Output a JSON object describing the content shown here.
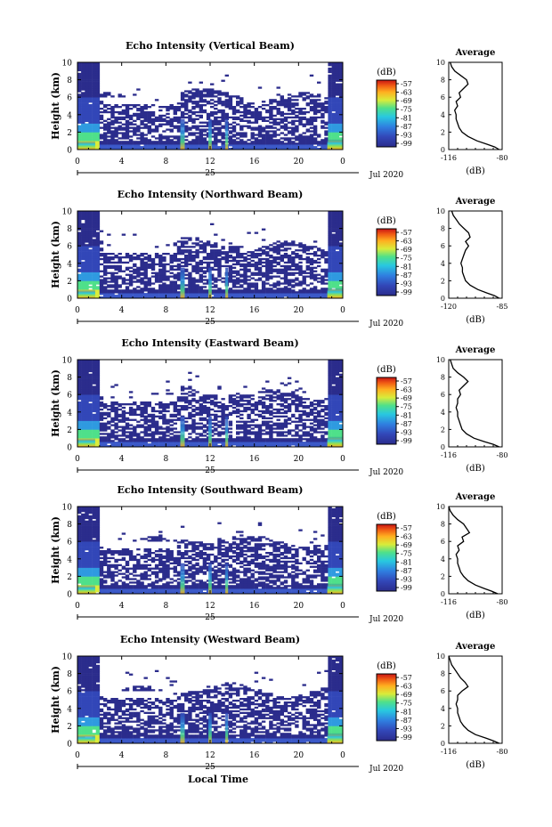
{
  "figure": {
    "xlabel_bottom": "Local Time",
    "colorbar_unit": "(dB)",
    "colorbar_ticks": [
      "-57",
      "-63",
      "-69",
      "-75",
      "-81",
      "-87",
      "-93",
      "-99"
    ],
    "avg_title": "Average",
    "avg_xlabel": "(dB)",
    "date_label": "Jul 2020",
    "day_label": "25",
    "ylabel": "Height (km)",
    "colors": {
      "low": "#2b2c8c",
      "high": "#c81414",
      "line": "#000000"
    }
  },
  "chart_data": [
    {
      "type": "heatmap",
      "title": "Echo Intensity (Vertical Beam)",
      "ylabel": "Height (km)",
      "x_ticks": [
        "0",
        "4",
        "8",
        "12",
        "16",
        "20",
        "0"
      ],
      "y_ticks": [
        "0",
        "2",
        "4",
        "6",
        "8",
        "10"
      ],
      "xlim": [
        0,
        24
      ],
      "ylim": [
        0,
        10
      ],
      "zlim": [
        -99,
        -57
      ],
      "avg_profile": {
        "xticks": [
          "-116",
          "-80"
        ],
        "xlim": [
          -116,
          -80
        ],
        "height": [
          0,
          0.3,
          0.6,
          1,
          1.5,
          2,
          2.5,
          3,
          3.5,
          4,
          4.5,
          5,
          5.5,
          6,
          6.5,
          7,
          7.5,
          8,
          8.5,
          9,
          9.5,
          10
        ],
        "value": [
          -82,
          -85,
          -90,
          -97,
          -103,
          -107,
          -109,
          -110,
          -111,
          -111,
          -112,
          -110,
          -111,
          -108,
          -109,
          -106,
          -103,
          -104,
          -108,
          -112,
          -114,
          -115
        ]
      }
    },
    {
      "type": "heatmap",
      "title": "Echo Intensity (Northward Beam)",
      "ylabel": "Height (km)",
      "x_ticks": [
        "0",
        "4",
        "8",
        "12",
        "16",
        "20",
        "0"
      ],
      "y_ticks": [
        "0",
        "2",
        "4",
        "6",
        "8",
        "10"
      ],
      "xlim": [
        0,
        24
      ],
      "ylim": [
        0,
        10
      ],
      "zlim": [
        -99,
        -57
      ],
      "avg_profile": {
        "xticks": [
          "-120",
          "-85"
        ],
        "xlim": [
          -120,
          -85
        ],
        "height": [
          0,
          0.3,
          0.6,
          1,
          1.5,
          2,
          2.5,
          3,
          3.5,
          4,
          4.5,
          5,
          5.5,
          6,
          6.5,
          7,
          7.5,
          8,
          8.5,
          9,
          9.5,
          10
        ],
        "value": [
          -87,
          -90,
          -95,
          -101,
          -106,
          -109,
          -110,
          -111,
          -111,
          -112,
          -111,
          -110,
          -109,
          -107,
          -109,
          -106,
          -107,
          -110,
          -113,
          -115,
          -117,
          -118
        ]
      }
    },
    {
      "type": "heatmap",
      "title": "Echo Intensity (Eastward Beam)",
      "ylabel": "Height (km)",
      "x_ticks": [
        "0",
        "4",
        "8",
        "12",
        "16",
        "20",
        "0"
      ],
      "y_ticks": [
        "0",
        "2",
        "4",
        "6",
        "8",
        "10"
      ],
      "xlim": [
        0,
        24
      ],
      "ylim": [
        0,
        10
      ],
      "zlim": [
        -99,
        -57
      ],
      "avg_profile": {
        "xticks": [
          "-116",
          "-80"
        ],
        "xlim": [
          -116,
          -80
        ],
        "height": [
          0,
          0.3,
          0.6,
          1,
          1.5,
          2,
          2.5,
          3,
          3.5,
          4,
          4.5,
          5,
          5.5,
          6,
          6.5,
          7,
          7.5,
          8,
          8.5,
          9,
          9.5,
          10
        ],
        "value": [
          -82,
          -86,
          -92,
          -99,
          -104,
          -107,
          -108,
          -109,
          -110,
          -110,
          -111,
          -110,
          -110,
          -108,
          -109,
          -106,
          -103,
          -106,
          -110,
          -113,
          -114,
          -115
        ]
      }
    },
    {
      "type": "heatmap",
      "title": "Echo Intensity (Southward Beam)",
      "ylabel": "Height (km)",
      "x_ticks": [
        "0",
        "4",
        "8",
        "12",
        "16",
        "20",
        "0"
      ],
      "y_ticks": [
        "0",
        "2",
        "4",
        "6",
        "8",
        "10"
      ],
      "xlim": [
        0,
        24
      ],
      "ylim": [
        0,
        10
      ],
      "zlim": [
        -99,
        -57
      ],
      "avg_profile": {
        "xticks": [
          "-116",
          "-80"
        ],
        "xlim": [
          -116,
          -80
        ],
        "height": [
          0,
          0.3,
          0.6,
          1,
          1.5,
          2,
          2.5,
          3,
          3.5,
          4,
          4.5,
          5,
          5.5,
          6,
          6.5,
          7,
          7.5,
          8,
          8.5,
          9,
          9.5,
          10
        ],
        "value": [
          -83,
          -87,
          -92,
          -98,
          -103,
          -106,
          -108,
          -109,
          -110,
          -110,
          -111,
          -109,
          -110,
          -106,
          -107,
          -102,
          -104,
          -106,
          -110,
          -113,
          -115,
          -116
        ]
      }
    },
    {
      "type": "heatmap",
      "title": "Echo Intensity (Westward Beam)",
      "ylabel": "Height (km)",
      "x_ticks": [
        "0",
        "4",
        "8",
        "12",
        "16",
        "20",
        "0"
      ],
      "y_ticks": [
        "0",
        "2",
        "4",
        "6",
        "8",
        "10"
      ],
      "xlim": [
        0,
        24
      ],
      "ylim": [
        0,
        10
      ],
      "zlim": [
        -99,
        -57
      ],
      "avg_profile": {
        "xticks": [
          "-116",
          "-80"
        ],
        "xlim": [
          -116,
          -80
        ],
        "height": [
          0,
          0.3,
          0.6,
          1,
          1.5,
          2,
          2.5,
          3,
          3.5,
          4,
          4.5,
          5,
          5.5,
          6,
          6.5,
          7,
          7.5,
          8,
          8.5,
          9,
          9.5,
          10
        ],
        "value": [
          -82,
          -86,
          -91,
          -98,
          -103,
          -106,
          -108,
          -109,
          -110,
          -110,
          -111,
          -110,
          -110,
          -107,
          -103,
          -105,
          -108,
          -110,
          -112,
          -114,
          -115,
          -116
        ]
      }
    }
  ]
}
